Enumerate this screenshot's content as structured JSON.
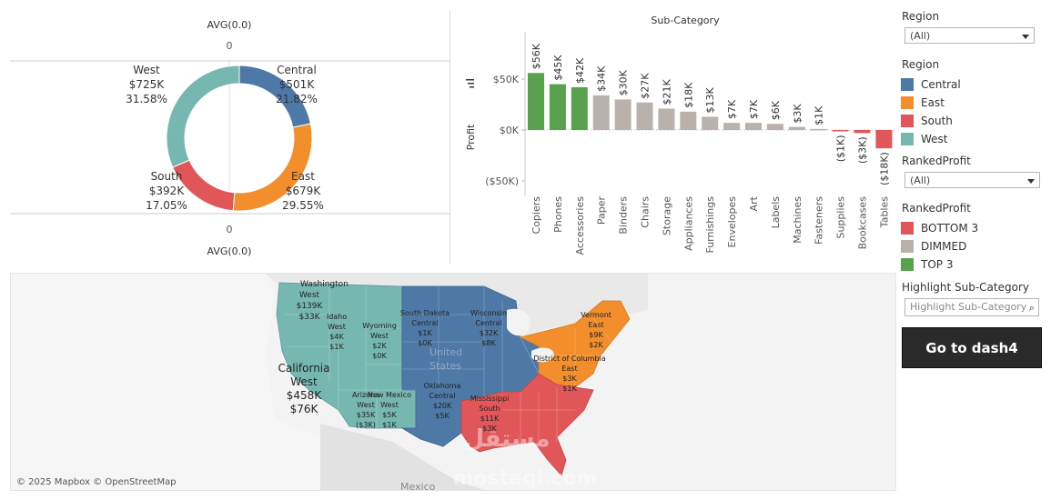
{
  "donut": {
    "top_label": "AVG(0.0)",
    "top_value": "0",
    "bottom_value": "0",
    "bottom_label": "AVG(0.0)",
    "slices": [
      {
        "region": "Central",
        "value": "$501K",
        "pct": "21.82%",
        "fraction": 0.2182,
        "color": "#4e79a7"
      },
      {
        "region": "East",
        "value": "$679K",
        "pct": "29.55%",
        "fraction": 0.2955,
        "color": "#f28e2b"
      },
      {
        "region": "South",
        "value": "$392K",
        "pct": "17.05%",
        "fraction": 0.1705,
        "color": "#e15759"
      },
      {
        "region": "West",
        "value": "$725K",
        "pct": "31.58%",
        "fraction": 0.3158,
        "color": "#76b7b2"
      }
    ]
  },
  "chart_data": {
    "type": "bar",
    "title": "Sub-Category",
    "ylabel": "Profit",
    "ylim": [
      -50,
      70
    ],
    "yticks": [
      {
        "v": 50,
        "label": "$50K"
      },
      {
        "v": 0,
        "label": "$0K"
      },
      {
        "v": -50,
        "label": "($50K)"
      }
    ],
    "categories": [
      "Copiers",
      "Phones",
      "Accessories",
      "Paper",
      "Binders",
      "Chairs",
      "Storage",
      "Appliances",
      "Furnishings",
      "Envelopes",
      "Art",
      "Labels",
      "Machines",
      "Fasteners",
      "Supplies",
      "Bookcases",
      "Tables"
    ],
    "values": [
      56,
      45,
      42,
      34,
      30,
      27,
      21,
      18,
      13,
      7,
      7,
      6,
      3,
      1,
      -1,
      -3,
      -18
    ],
    "labels": [
      "$56K",
      "$45K",
      "$42K",
      "$34K",
      "$30K",
      "$27K",
      "$21K",
      "$18K",
      "$13K",
      "$7K",
      "$7K",
      "$6K",
      "$3K",
      "$1K",
      "($1K)",
      "($3K)",
      "($18K)"
    ],
    "ranked": [
      "TOP 3",
      "TOP 3",
      "TOP 3",
      "DIMMED",
      "DIMMED",
      "DIMMED",
      "DIMMED",
      "DIMMED",
      "DIMMED",
      "DIMMED",
      "DIMMED",
      "DIMMED",
      "DIMMED",
      "DIMMED",
      "BOTTOM 3",
      "BOTTOM 3",
      "BOTTOM 3"
    ]
  },
  "colors": {
    "top3": "#59a14f",
    "dimmed": "#bab0ac",
    "bottom3": "#e15759",
    "central": "#4e79a7",
    "east": "#f28e2b",
    "south": "#e15759",
    "west": "#76b7b2"
  },
  "map": {
    "attribution": "© 2025 Mapbox © OpenStreetMap",
    "country_label": "Mexico",
    "faint_label_1": "United",
    "faint_label_2": "States",
    "watermark_ar": "مستقل",
    "watermark": "mostaql.com",
    "labels": [
      {
        "id": "washington",
        "lines": [
          "Washington",
          "West",
          "$139K",
          "$33K"
        ]
      },
      {
        "id": "idaho",
        "lines": [
          "Idaho",
          "West",
          "$4K",
          "$1K"
        ]
      },
      {
        "id": "wyoming",
        "lines": [
          "Wyoming",
          "West",
          "$2K",
          "$0K"
        ]
      },
      {
        "id": "california",
        "lines": [
          "California",
          "West",
          "$458K",
          "$76K"
        ]
      },
      {
        "id": "arizona",
        "lines": [
          "Arizona",
          "West",
          "$35K",
          "($3K)"
        ]
      },
      {
        "id": "newmexico",
        "lines": [
          "New Mexico",
          "West",
          "$5K",
          "$1K"
        ]
      },
      {
        "id": "southdakota",
        "lines": [
          "South Dakota",
          "Central",
          "$1K",
          "$0K"
        ]
      },
      {
        "id": "wisconsin",
        "lines": [
          "Wisconsin",
          "Central",
          "$32K",
          "$8K"
        ]
      },
      {
        "id": "oklahoma",
        "lines": [
          "Oklahoma",
          "Central",
          "$20K",
          "$5K"
        ]
      },
      {
        "id": "mississippi",
        "lines": [
          "Mississippi",
          "South",
          "$11K",
          "$3K"
        ]
      },
      {
        "id": "vermont",
        "lines": [
          "Vermont",
          "East",
          "$9K",
          "$2K"
        ]
      },
      {
        "id": "dc",
        "lines": [
          "District of Columbia",
          "East",
          "$3K",
          "$1K"
        ]
      }
    ]
  },
  "controls": {
    "region_filter": {
      "title": "Region",
      "value": "(All)"
    },
    "region_legend": {
      "title": "Region",
      "items": [
        {
          "label": "Central",
          "color": "#4e79a7"
        },
        {
          "label": "East",
          "color": "#f28e2b"
        },
        {
          "label": "South",
          "color": "#e15759"
        },
        {
          "label": "West",
          "color": "#76b7b2"
        }
      ]
    },
    "ranked_filter": {
      "title": "RankedProfit",
      "value": "(All)"
    },
    "ranked_legend": {
      "title": "RankedProfit",
      "items": [
        {
          "label": "BOTTOM 3",
          "color": "#e15759"
        },
        {
          "label": "DIMMED",
          "color": "#bab0ac"
        },
        {
          "label": "TOP 3",
          "color": "#59a14f"
        }
      ]
    },
    "highlight": {
      "title": "Highlight Sub-Category",
      "placeholder": "Highlight Sub-Category"
    },
    "button_label": "Go to dash4"
  }
}
